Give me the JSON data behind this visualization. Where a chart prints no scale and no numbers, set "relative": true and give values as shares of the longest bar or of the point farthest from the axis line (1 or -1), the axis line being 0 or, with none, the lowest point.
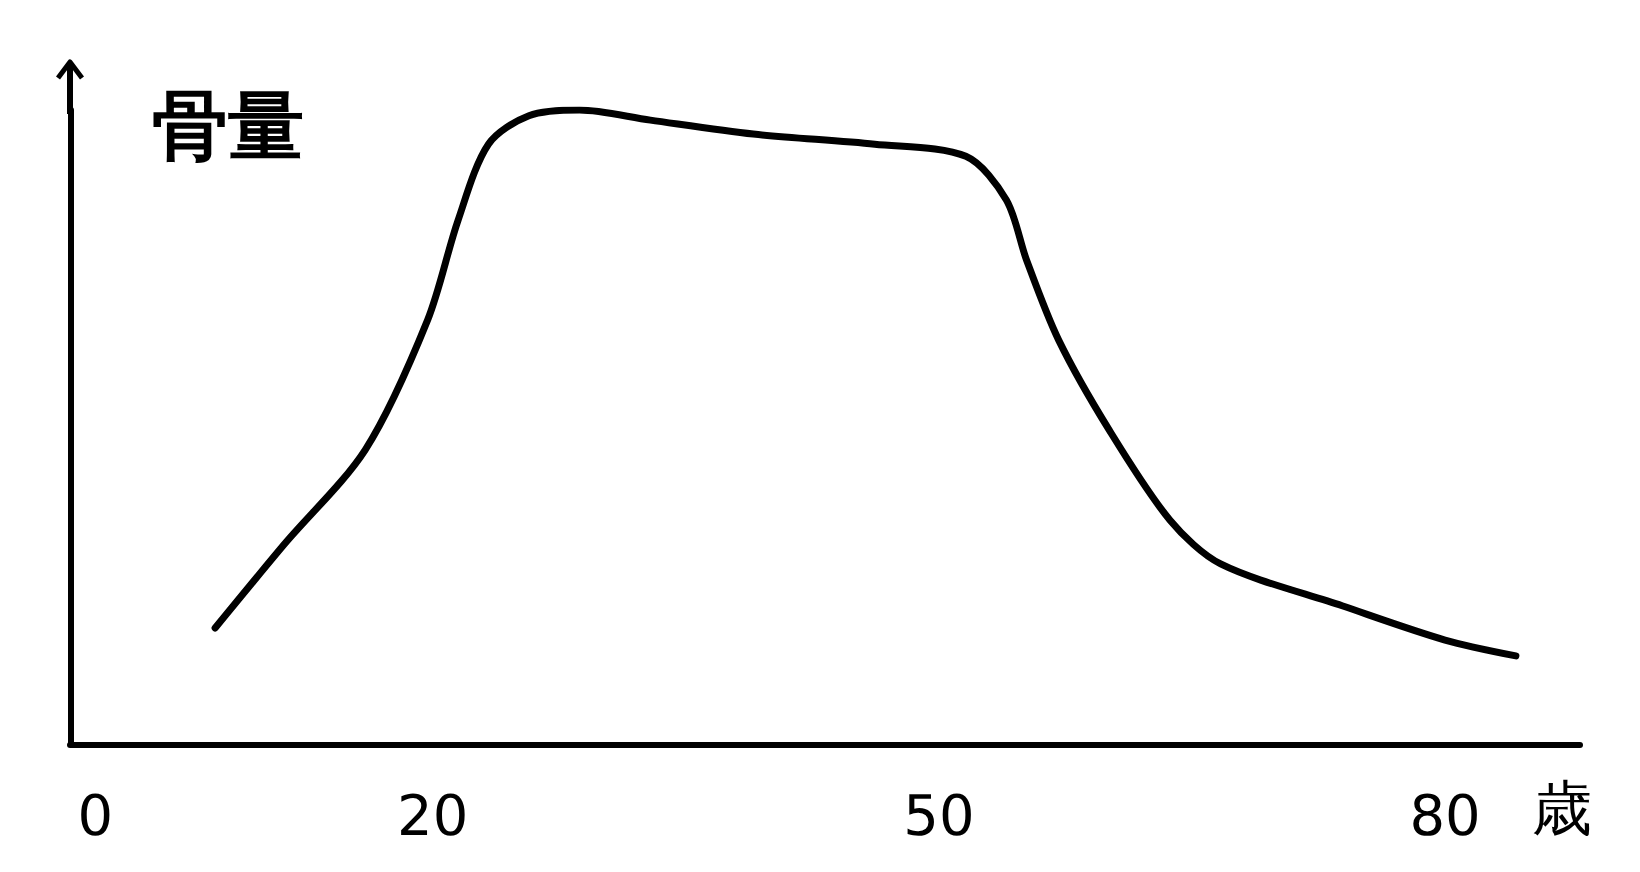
{
  "chart_data": {
    "type": "line",
    "relative": true,
    "ylabel": "骨量",
    "xlabel": "歳",
    "xlim": [
      -1.5,
      88
    ],
    "xticks": [
      0,
      20,
      50,
      80
    ],
    "marker": "none",
    "line_style": "solid",
    "grid": false,
    "x": [
      7.1,
      11.2,
      16.0,
      19.7,
      21.5,
      23.3,
      25.7,
      28.7,
      32.9,
      39.0,
      46.2,
      51.6,
      54.0,
      55.2,
      57.1,
      60.1,
      63.7,
      66.7,
      73.9,
      80.0,
      84.2
    ],
    "series": [
      {
        "color": "#000000",
        "values": [
          0.183,
          0.315,
          0.464,
          0.669,
          0.826,
          0.946,
          0.991,
          1.0,
          0.984,
          0.962,
          0.946,
          0.927,
          0.858,
          0.763,
          0.637,
          0.495,
          0.353,
          0.284,
          0.218,
          0.164,
          0.139
        ]
      }
    ]
  }
}
